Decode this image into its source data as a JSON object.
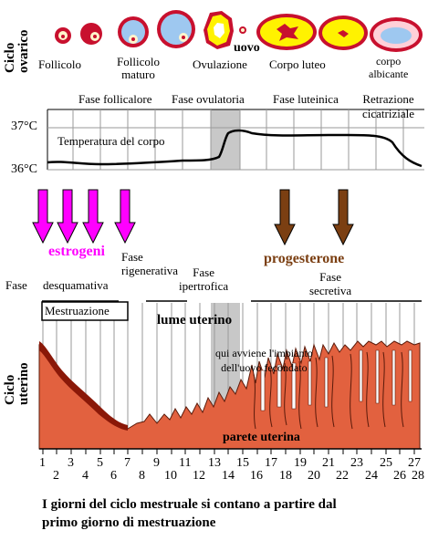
{
  "ovarian": {
    "row_label_1": "Ciclo",
    "row_label_2": "ovarico",
    "stages": {
      "follicolo": "Follicolo",
      "follicolo_maturo_1": "Follicolo",
      "follicolo_maturo_2": "maturo",
      "uovo": "uovo",
      "ovulazione": "Ovulazione",
      "corpo_luteo": "Corpo luteo",
      "corpo_albicante_1": "corpo",
      "corpo_albicante_2": "albicante"
    }
  },
  "phases": {
    "follicolare": "Fase follicalore",
    "ovulatoria": "Fase ovulatoria",
    "luteinica": "Fase luteinica",
    "retrazione_1": "Retrazione",
    "retrazione_2": "cicatriziale"
  },
  "temperature": {
    "label": "Temperatura del corpo",
    "tick_high": "37°C",
    "tick_low": "36°C"
  },
  "hormones": {
    "estrogeni": "estrogeni",
    "progesterone": "progesterone",
    "colors": {
      "estrogeni": "#ff00ff",
      "progesterone": "#7b3f12"
    }
  },
  "uterine_phases": {
    "fase": "Fase",
    "desquamativa": "desquamativa",
    "rigenerativa_1": "Fase",
    "rigenerativa_2": "rigenerativa",
    "ipertrofica_1": "Fase",
    "ipertrofica_2": "ipertrofica",
    "secretiva_1": "Fase",
    "secretiva_2": "secretiva"
  },
  "uterine": {
    "row_label_1": "Ciclo",
    "row_label_2": "uterino",
    "mestruazione": "Mestruazione",
    "lume": "lume uterino",
    "impianto_1": "qui avviene l'impianto",
    "impianto_2": "dell'uovo fecondato",
    "parete": "parete uterina",
    "wall_color": "#e2613f"
  },
  "days_odd": [
    "1",
    "3",
    "5",
    "7",
    "9",
    "11",
    "13",
    "15",
    "17",
    "19",
    "21",
    "23",
    "25",
    "27"
  ],
  "days_even": [
    "2",
    "4",
    "6",
    "8",
    "10",
    "12",
    "14",
    "16",
    "18",
    "20",
    "22",
    "24",
    "26",
    "28"
  ],
  "caption_1": "I giorni del ciclo mestruale si contano a partire dal",
  "caption_2": "primo giorno di mestruazione"
}
